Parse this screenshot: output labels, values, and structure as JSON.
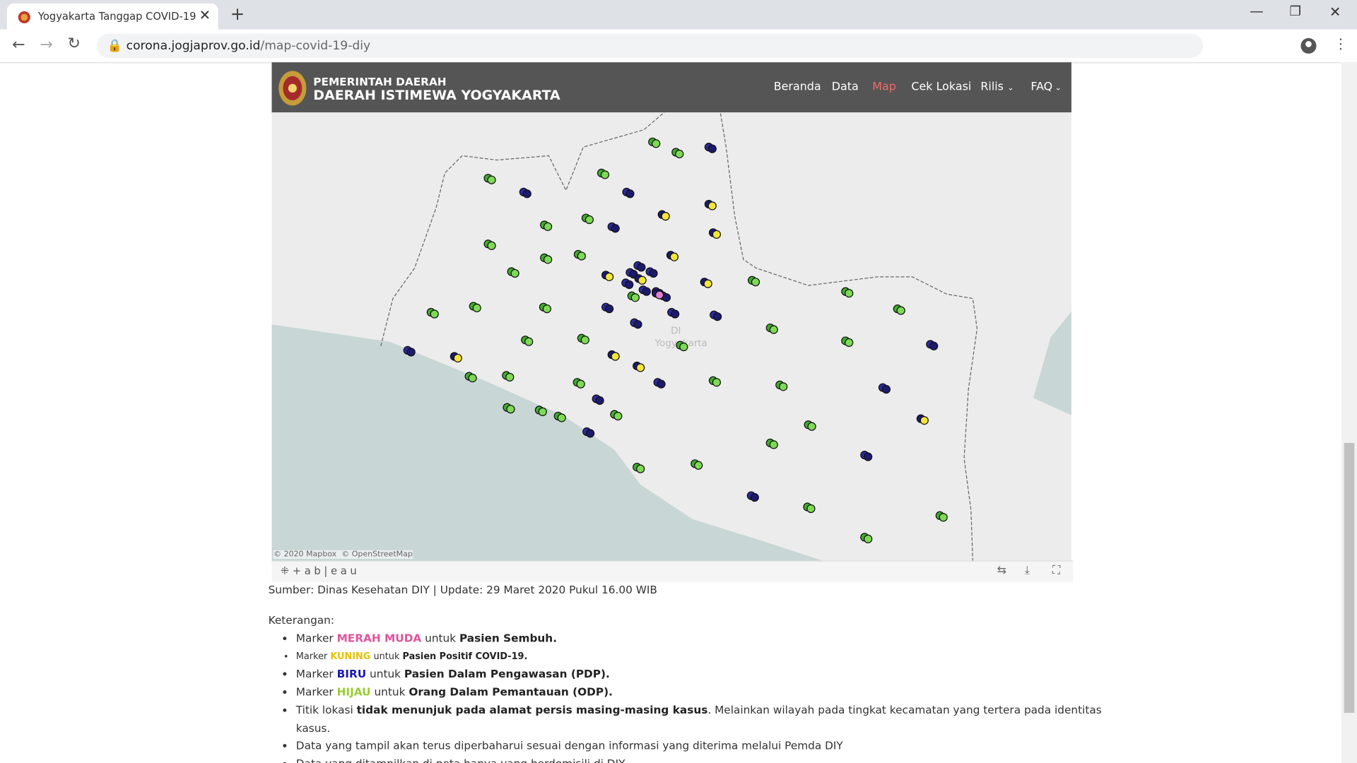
{
  "browser": {
    "tab_title": "Yogyakarta Tanggap COVID-19",
    "url_host": "corona.jogjaprov.go.id",
    "url_path": "/map-covid-19-diy"
  },
  "header": {
    "brand_line1": "PEMERINTAH DAERAH",
    "brand_line2": "DAERAH ISTIMEWA YOGYAKARTA",
    "nav": [
      "Beranda",
      "Data",
      "Map",
      "Cek Lokasi",
      "Rilis",
      "FAQ"
    ]
  },
  "map": {
    "region_label_1": "DI",
    "region_label_2": "Yogyakarta",
    "attribution": "© 2020 Mapbox  © OpenStreetMap",
    "brand": "+ a b | e a u"
  },
  "source": "Sumber: Dinas Kesehatan DIY | Update: 29 Maret 2020 Pukul 16.00 WIB",
  "legend": {
    "heading": "Keterangan:",
    "items": [
      [
        "Marker",
        "MERAH MUDA",
        "untuk",
        "Pasien Sembuh."
      ],
      [
        "Marker",
        "KUNING",
        "untuk",
        "Pasien Positif COVID-19."
      ],
      [
        "Marker",
        "BIRU",
        "untuk",
        "Pasien Dalam Pengawasan (PDP)."
      ],
      [
        "Marker",
        "HIJAU",
        "untuk",
        "Orang Dalam Pemantauan (ODP)."
      ],
      [
        "Titik lokasi",
        "tidak menunjuk pada alamat persis masing-masing kasus",
        ". Melainkan wilayah pada tingkat kecamatan yang tertera pada identitas kasus."
      ],
      [
        "Data yang tampil akan terus diperbaharui sesuai dengan informasi yang diterima melalui Pemda DIY"
      ],
      [
        "Data yang ditampilkan di peta hanya yang berdomisili di DIY"
      ]
    ]
  }
}
